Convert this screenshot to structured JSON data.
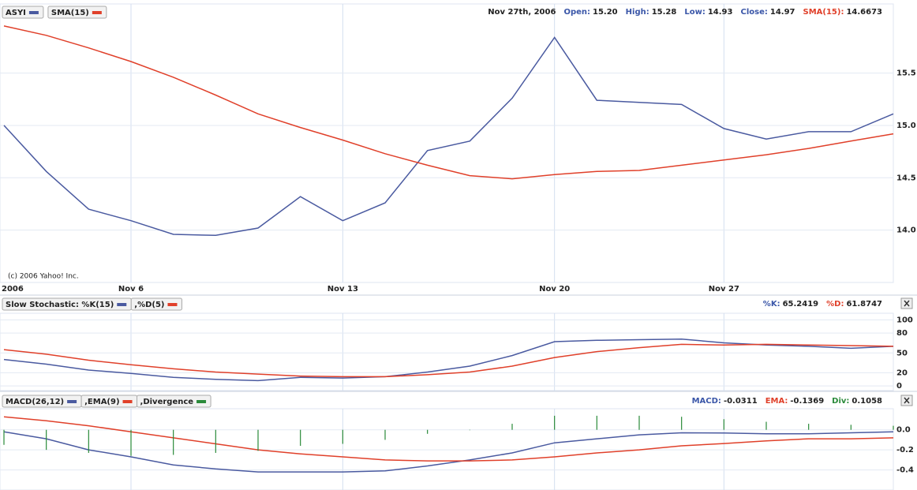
{
  "chart_data": [
    {
      "type": "line",
      "categories": [
        "2006",
        null,
        null,
        "Nov 6",
        null,
        null,
        null,
        null,
        "Nov 13",
        null,
        null,
        null,
        null,
        "Nov 20",
        null,
        null,
        null,
        "Nov 27",
        null,
        null,
        null,
        null
      ],
      "series": [
        {
          "name": "ASYI",
          "color": "#4a5aa0",
          "values": [
            15.0,
            14.56,
            14.2,
            14.09,
            13.96,
            13.95,
            14.02,
            14.32,
            14.09,
            14.26,
            14.76,
            14.85,
            15.26,
            15.84,
            15.24,
            15.22,
            15.2,
            14.97,
            14.87,
            14.94,
            14.94,
            15.11
          ]
        },
        {
          "name": "SMA(15)",
          "color": "#e0402a",
          "values": [
            15.95,
            15.86,
            15.74,
            15.61,
            15.46,
            15.29,
            15.11,
            14.98,
            14.86,
            14.73,
            14.62,
            14.52,
            14.49,
            14.53,
            14.56,
            14.57,
            14.62,
            14.67,
            14.72,
            14.78,
            14.85,
            14.92
          ]
        }
      ],
      "ylim": [
        13.5,
        16.16
      ],
      "yticks": [
        {
          "value": 14,
          "label": "14.0"
        },
        {
          "value": 14.5,
          "label": "14.5"
        },
        {
          "value": 15,
          "label": "15.0"
        },
        {
          "value": 15.5,
          "label": "15.5"
        }
      ],
      "grid": true,
      "info_date": "Nov 27th, 2006",
      "info": [
        {
          "label": "Open:",
          "value": "15.20",
          "color": "#3a56a8"
        },
        {
          "label": "High:",
          "value": "15.28",
          "color": "#3a56a8"
        },
        {
          "label": "Low:",
          "value": "14.93",
          "color": "#3a56a8"
        },
        {
          "label": "Close:",
          "value": "14.97",
          "color": "#3a56a8"
        },
        {
          "label": "SMA(15):",
          "value": "14.6673",
          "color": "#e0402a"
        }
      ],
      "note": "(c) 2006 Yahoo! Inc."
    },
    {
      "type": "line",
      "series": [
        {
          "name": "Slow Stochastic: %K(15)",
          "color": "#4a5aa0",
          "values": [
            40,
            33,
            24,
            19,
            13,
            10,
            8,
            13,
            12,
            14,
            21,
            30,
            46,
            67,
            69,
            70,
            71,
            65.24,
            62,
            60,
            57,
            60
          ]
        },
        {
          "name": ",%D(5)",
          "color": "#e0402a",
          "values": [
            55,
            48,
            39,
            32,
            26,
            21,
            18,
            15,
            14,
            14,
            17,
            21,
            30,
            43,
            52,
            58,
            63,
            61.87,
            63,
            62,
            61,
            60
          ]
        }
      ],
      "ylim": [
        -7,
        110
      ],
      "yticks": [
        0,
        20,
        50,
        80,
        100
      ],
      "grid": true,
      "info": [
        {
          "label": "%K:",
          "value": "65.2419",
          "color": "#3a56a8"
        },
        {
          "label": "%D:",
          "value": "61.8747",
          "color": "#e0402a"
        }
      ]
    },
    {
      "type": "line",
      "series": [
        {
          "name": "MACD(26,12)",
          "color": "#4a5aa0",
          "values": [
            -0.02,
            -0.09,
            -0.2,
            -0.27,
            -0.35,
            -0.39,
            -0.42,
            -0.42,
            -0.42,
            -0.41,
            -0.36,
            -0.3,
            -0.23,
            -0.13,
            -0.09,
            -0.05,
            -0.03,
            -0.0311,
            -0.04,
            -0.04,
            -0.03,
            -0.02
          ]
        },
        {
          "name": ",EMA(9)",
          "color": "#e0402a",
          "values": [
            0.13,
            0.09,
            0.04,
            -0.02,
            -0.08,
            -0.14,
            -0.2,
            -0.24,
            -0.27,
            -0.3,
            -0.31,
            -0.31,
            -0.3,
            -0.27,
            -0.23,
            -0.2,
            -0.16,
            -0.1369,
            -0.11,
            -0.09,
            -0.09,
            -0.08
          ]
        },
        {
          "name": ",Divergence",
          "color": "#2a8a3a",
          "style": "bar",
          "values": [
            -0.15,
            -0.2,
            -0.23,
            -0.26,
            -0.25,
            -0.23,
            -0.21,
            -0.16,
            -0.14,
            -0.1,
            -0.04,
            0.0,
            0.06,
            0.14,
            0.14,
            0.14,
            0.13,
            0.1058,
            0.08,
            0.06,
            0.05,
            0.04
          ]
        }
      ],
      "ylim": [
        -0.6,
        0.21
      ],
      "yticks": [
        -0.4,
        -0.2,
        {
          "value": 0,
          "label": "0.0"
        }
      ],
      "grid": true,
      "info": [
        {
          "label": "MACD:",
          "value": "-0.0311",
          "color": "#3a56a8"
        },
        {
          "label": "EMA:",
          "value": "-0.1369",
          "color": "#e0402a"
        },
        {
          "label": "Div:",
          "value": "0.1058",
          "color": "#2a8a3a"
        }
      ]
    }
  ]
}
